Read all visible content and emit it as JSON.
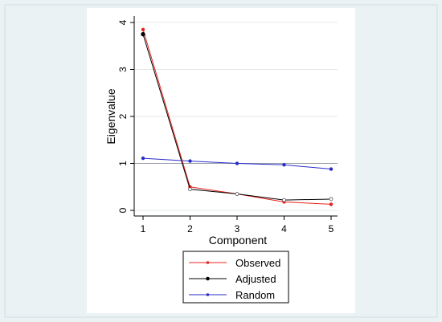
{
  "chart_data": {
    "type": "line",
    "xlabel": "Component",
    "ylabel": "Eigenvalue",
    "x": [
      1,
      2,
      3,
      4,
      5
    ],
    "xlim": [
      1,
      5
    ],
    "ylim": [
      0,
      4
    ],
    "xticks": [
      "1",
      "2",
      "3",
      "4",
      "5"
    ],
    "yticks": [
      "0",
      "1",
      "2",
      "3",
      "4"
    ],
    "reference_line": 1,
    "grid": true,
    "legend_position": "bottom",
    "series": [
      {
        "name": "Observed",
        "values": [
          3.85,
          0.5,
          0.35,
          0.18,
          0.13
        ],
        "color": "#e8231c"
      },
      {
        "name": "Adjusted",
        "values": [
          3.75,
          0.45,
          0.35,
          0.22,
          0.24
        ],
        "color": "#000000"
      },
      {
        "name": "Random",
        "values": [
          1.11,
          1.05,
          1.0,
          0.97,
          0.88
        ],
        "color": "#2b2bc8"
      }
    ]
  },
  "colors": {
    "outer_background": "#eaf2f3",
    "plot_background": "#ffffff",
    "grid": "#e3e8ea",
    "axis": "#000000"
  }
}
